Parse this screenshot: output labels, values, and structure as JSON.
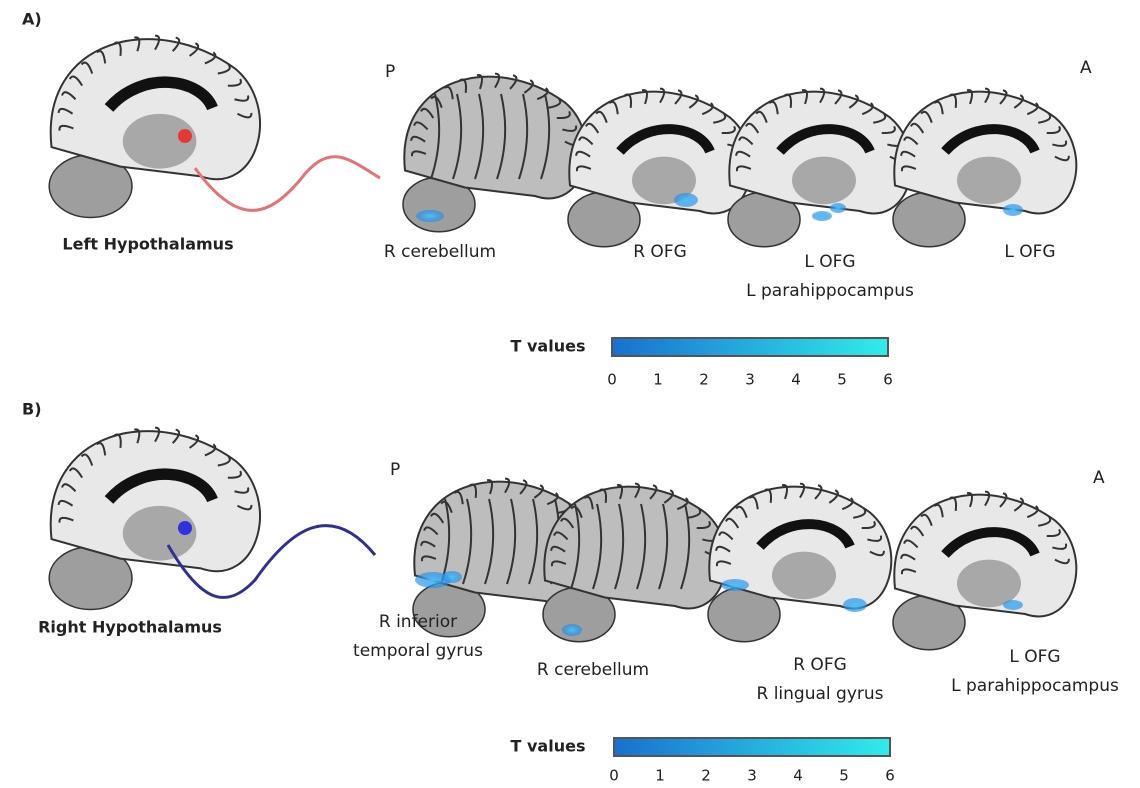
{
  "panels": [
    {
      "label": "A)",
      "seed": "Left Hypothalamus",
      "posterior": "P",
      "anterior": "A",
      "regions": [
        [
          "R cerebellum"
        ],
        [
          "R OFG"
        ],
        [
          "L OFG",
          "L parahippocampus"
        ],
        [
          "L OFG"
        ]
      ],
      "colorbar": {
        "title": "T values",
        "ticks": [
          0,
          1,
          2,
          3,
          4,
          5,
          6
        ]
      }
    },
    {
      "label": "B)",
      "seed": "Right Hypothalamus",
      "posterior": "P",
      "anterior": "A",
      "regions": [
        [
          "R inferior",
          "temporal gyrus"
        ],
        [
          "R cerebellum"
        ],
        [
          "R OFG",
          "R lingual gyrus"
        ],
        [
          "L OFG",
          "L parahippocampus"
        ]
      ],
      "colorbar": {
        "title": "T values",
        "ticks": [
          0,
          1,
          2,
          3,
          4,
          5,
          6
        ]
      }
    }
  ]
}
